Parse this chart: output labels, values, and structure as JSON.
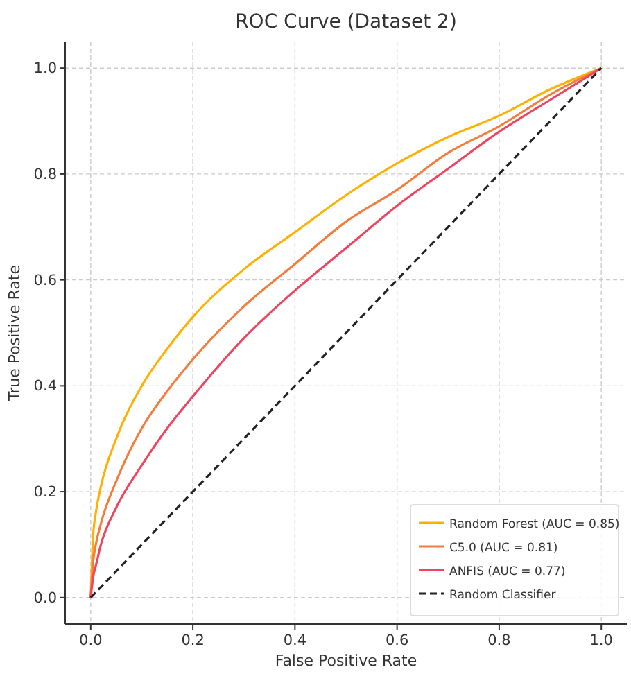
{
  "chart_data": {
    "type": "line",
    "title": "ROC Curve (Dataset 2)",
    "xlabel": "False Positive Rate",
    "ylabel": "True Positive Rate",
    "x": [
      0,
      0.005,
      0.01,
      0.02,
      0.05,
      0.1,
      0.15,
      0.2,
      0.3,
      0.4,
      0.5,
      0.6,
      0.7,
      0.8,
      0.9,
      1
    ],
    "series": [
      {
        "name": "Random Forest (AUC = 0.85)",
        "color": "#ffb000",
        "values": [
          0,
          0.12,
          0.16,
          0.21,
          0.3,
          0.4,
          0.47,
          0.53,
          0.62,
          0.69,
          0.76,
          0.82,
          0.87,
          0.91,
          0.96,
          1
        ]
      },
      {
        "name": "C5.0 (AUC = 0.81)",
        "color": "#f47c3c",
        "values": [
          0,
          0.07,
          0.1,
          0.14,
          0.22,
          0.32,
          0.39,
          0.45,
          0.55,
          0.63,
          0.71,
          0.77,
          0.84,
          0.89,
          0.95,
          1
        ]
      },
      {
        "name": "ANFIS (AUC = 0.77)",
        "color": "#f0455f",
        "values": [
          0,
          0.04,
          0.06,
          0.1,
          0.17,
          0.25,
          0.32,
          0.38,
          0.49,
          0.58,
          0.66,
          0.74,
          0.81,
          0.88,
          0.94,
          1
        ]
      },
      {
        "name": "Random Classifier",
        "color": "#222222",
        "line_style": "dashed",
        "x": [
          0,
          1
        ],
        "values": [
          0,
          1
        ]
      }
    ],
    "xlim": [
      -0.05,
      1.05
    ],
    "ylim": [
      -0.05,
      1.05
    ],
    "xticks": [
      {
        "value": 0,
        "label": "0.0"
      },
      {
        "value": 0.2,
        "label": "0.2"
      },
      {
        "value": 0.4,
        "label": "0.4"
      },
      {
        "value": 0.6,
        "label": "0.6"
      },
      {
        "value": 0.8,
        "label": "0.8"
      },
      {
        "value": 1,
        "label": "1.0"
      }
    ],
    "yticks": [
      {
        "value": 0,
        "label": "0.0"
      },
      {
        "value": 0.2,
        "label": "0.2"
      },
      {
        "value": 0.4,
        "label": "0.4"
      },
      {
        "value": 0.6,
        "label": "0.6"
      },
      {
        "value": 0.8,
        "label": "0.8"
      },
      {
        "value": 1,
        "label": "1.0"
      }
    ],
    "grid": true,
    "legend": "bottom right",
    "marker": "none",
    "line_style": "solid"
  }
}
